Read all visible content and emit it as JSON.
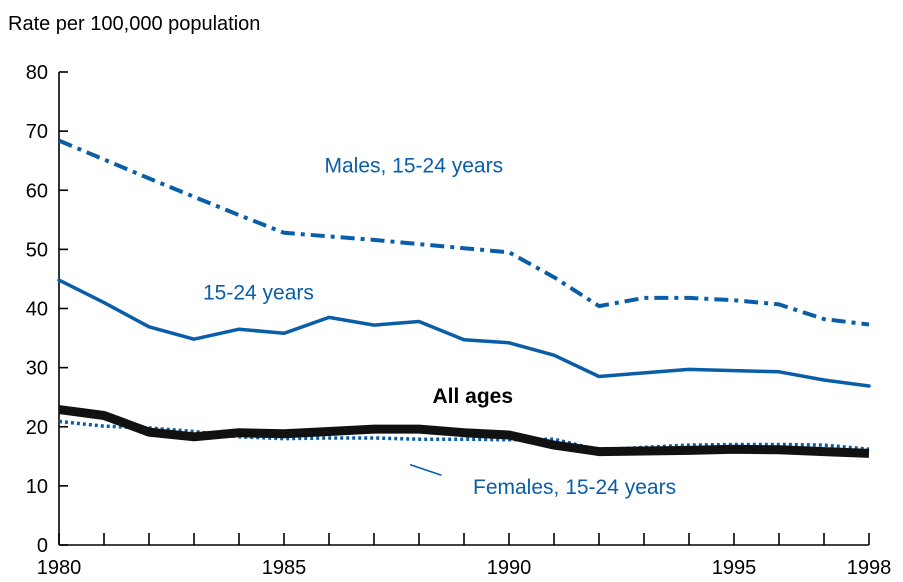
{
  "chart_data": {
    "type": "line",
    "title": "",
    "ylabel": "Rate per 100,000 population",
    "xlabel": "",
    "xlim": [
      1980,
      1998
    ],
    "ylim": [
      0,
      80
    ],
    "x_ticks": [
      1980,
      1985,
      1990,
      1995,
      1998
    ],
    "y_ticks": [
      0,
      10,
      20,
      30,
      40,
      50,
      60,
      70,
      80
    ],
    "grid": false,
    "x": [
      1980,
      1981,
      1982,
      1983,
      1984,
      1985,
      1986,
      1987,
      1988,
      1989,
      1990,
      1991,
      1992,
      1993,
      1994,
      1995,
      1996,
      1997,
      1998
    ],
    "series": [
      {
        "name": "Males, 15-24 years",
        "color": "#0a5ea8",
        "style": "dash-dot",
        "values": [
          68.4,
          65.2,
          62.0,
          58.9,
          55.8,
          52.8,
          52.2,
          51.6,
          50.9,
          50.2,
          49.5,
          45.3,
          40.4,
          41.8,
          41.8,
          41.4,
          40.7,
          38.2,
          37.3
        ]
      },
      {
        "name": "15-24 years",
        "color": "#0a5ea8",
        "style": "solid",
        "values": [
          44.8,
          41.0,
          36.9,
          34.8,
          36.5,
          35.8,
          38.5,
          37.2,
          37.8,
          34.7,
          34.2,
          32.1,
          28.5,
          29.1,
          29.7,
          29.5,
          29.3,
          27.9,
          26.9
        ]
      },
      {
        "name": "All ages",
        "color": "#111111",
        "style": "thick",
        "values": [
          22.9,
          21.9,
          19.1,
          18.3,
          19.0,
          18.8,
          19.2,
          19.6,
          19.6,
          19.0,
          18.6,
          16.9,
          15.8,
          15.9,
          16.0,
          16.2,
          16.1,
          15.8,
          15.5
        ]
      },
      {
        "name": "Females, 15-24 years",
        "color": "#0a5ea8",
        "style": "dotted",
        "values": [
          20.9,
          20.1,
          19.8,
          19.2,
          18.3,
          18.0,
          18.1,
          18.1,
          17.9,
          17.9,
          17.8,
          17.9,
          16.1,
          16.5,
          16.9,
          17.0,
          17.0,
          16.9,
          16.2
        ]
      }
    ],
    "annotations": [
      {
        "text": "Males, 15-24 years",
        "x": 1985.9,
        "y": 63.0,
        "series": 0
      },
      {
        "text": "15-24 years",
        "x": 1983.2,
        "y": 41.5,
        "series": 1
      },
      {
        "text": "All ages",
        "x": 1988.3,
        "y": 24.0,
        "series": 2
      },
      {
        "text": "Females, 15-24 years",
        "x": 1989.2,
        "y": 8.6,
        "series": 3,
        "leader": [
          1988.5,
          11.8,
          1987.8,
          13.6
        ]
      }
    ]
  }
}
